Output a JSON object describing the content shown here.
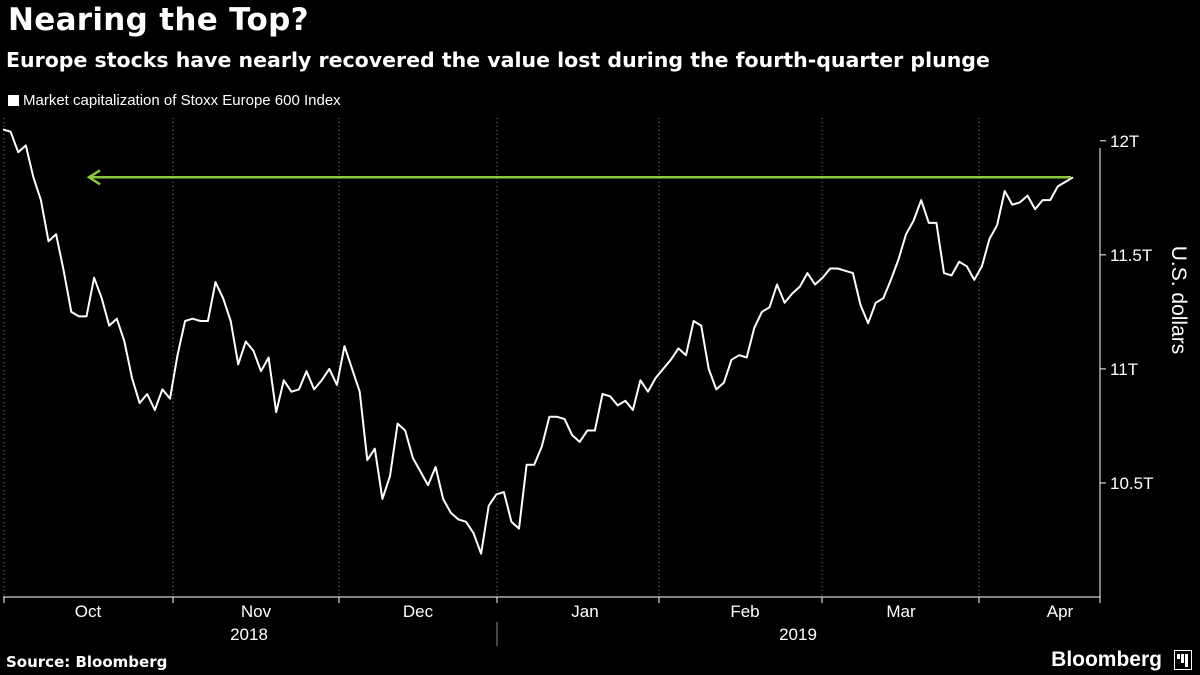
{
  "header": {
    "title": "Nearing the Top?",
    "subtitle": "Europe stocks have nearly recovered the value lost during the fourth-quarter plunge"
  },
  "footer": {
    "source": "Source: Bloomberg",
    "brand": "Bloomberg"
  },
  "chart_data": {
    "type": "line",
    "title": "Nearing the Top?",
    "subtitle": "Europe stocks have nearly recovered the value lost during the fourth-quarter plunge",
    "ylabel": "U.S. dollars",
    "xlabel": "",
    "ylim": [
      10.0,
      12.1
    ],
    "y_ticks": [
      {
        "value": 10.5,
        "label": "10.5T"
      },
      {
        "value": 11,
        "label": "11T"
      },
      {
        "value": 11.5,
        "label": "11.5T"
      },
      {
        "value": 12,
        "label": "12T"
      }
    ],
    "x_tick_labels": [
      "Oct",
      "Nov",
      "Dec",
      "Jan",
      "Feb",
      "Mar",
      "Apr"
    ],
    "year_labels": [
      "2018",
      "2019"
    ],
    "grid": "vertical dotted",
    "legend": "top-left",
    "series": [
      {
        "name": "Market capitalization of Stoxx Europe 600 Index",
        "color": "#ffffff",
        "values": [
          12.05,
          12.04,
          11.95,
          11.98,
          11.84,
          11.74,
          11.56,
          11.59,
          11.43,
          11.25,
          11.23,
          11.23,
          11.4,
          11.31,
          11.19,
          11.22,
          11.12,
          10.96,
          10.85,
          10.89,
          10.82,
          10.91,
          10.87,
          11.06,
          11.21,
          11.22,
          11.21,
          11.21,
          11.38,
          11.31,
          11.21,
          11.02,
          11.12,
          11.08,
          10.99,
          11.05,
          10.81,
          10.95,
          10.9,
          10.91,
          10.99,
          10.91,
          10.95,
          11.0,
          10.93,
          11.1,
          11.0,
          10.9,
          10.6,
          10.65,
          10.43,
          10.53,
          10.76,
          10.73,
          10.61,
          10.55,
          10.49,
          10.57,
          10.43,
          10.37,
          10.34,
          10.33,
          10.28,
          10.19,
          10.4,
          10.45,
          10.46,
          10.33,
          10.3,
          10.58,
          10.58,
          10.66,
          10.79,
          10.79,
          10.78,
          10.71,
          10.68,
          10.73,
          10.73,
          10.89,
          10.88,
          10.84,
          10.86,
          10.82,
          10.95,
          10.9,
          10.96,
          11.0,
          11.04,
          11.09,
          11.06,
          11.21,
          11.19,
          11.0,
          10.91,
          10.94,
          11.04,
          11.06,
          11.05,
          11.18,
          11.25,
          11.27,
          11.37,
          11.29,
          11.33,
          11.36,
          11.42,
          11.37,
          11.4,
          11.44,
          11.44,
          11.43,
          11.42,
          11.28,
          11.2,
          11.29,
          11.31,
          11.39,
          11.48,
          11.59,
          11.65,
          11.74,
          11.64,
          11.64,
          11.42,
          11.41,
          11.47,
          11.45,
          11.39,
          11.45,
          11.57,
          11.63,
          11.78,
          11.72,
          11.73,
          11.76,
          11.7,
          11.74,
          11.74,
          11.8,
          11.82,
          11.84
        ]
      }
    ],
    "annotations": [
      {
        "type": "arrow",
        "color": "#8dc63f",
        "y": 11.84,
        "direction": "left"
      }
    ]
  }
}
